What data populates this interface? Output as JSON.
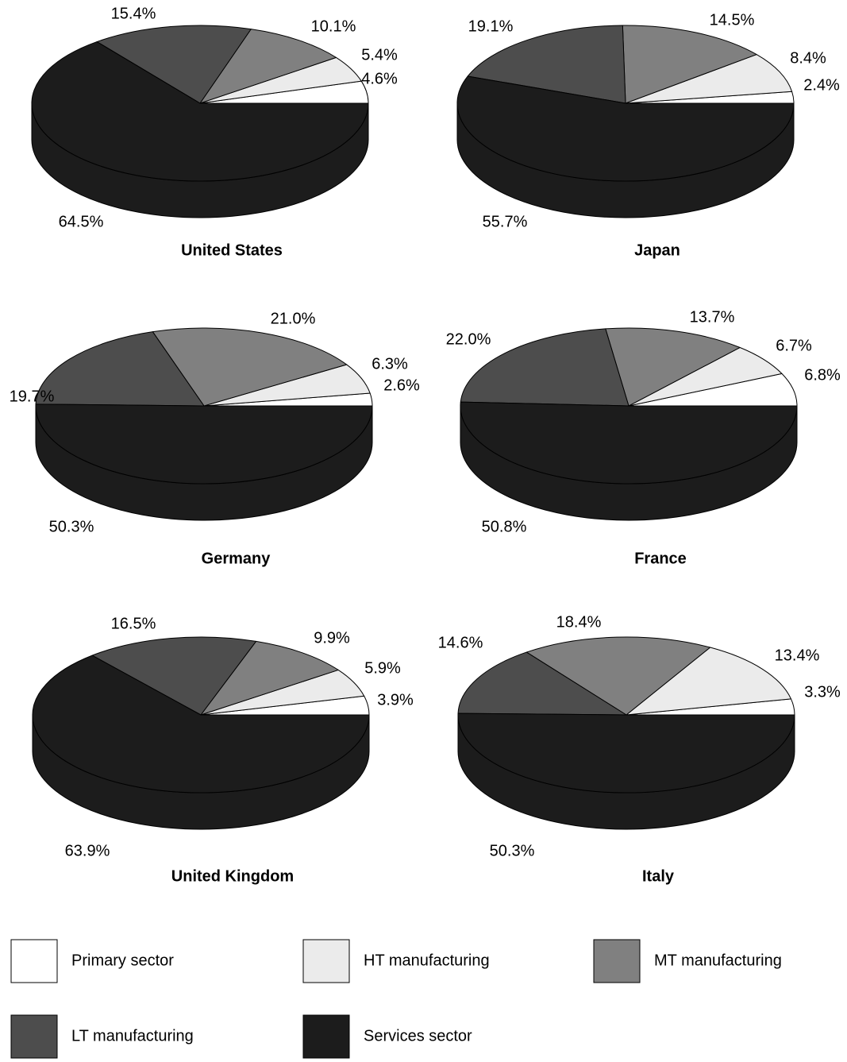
{
  "chart_data": [
    {
      "type": "pie",
      "title": "United States",
      "categories": [
        "Primary sector",
        "HT manufacturing",
        "MT manufacturing",
        "LT manufacturing",
        "Services sector"
      ],
      "values": [
        4.6,
        5.4,
        10.1,
        15.4,
        64.5
      ],
      "labels": [
        "4.6%",
        "5.4%",
        "10.1%",
        "15.4%",
        "64.5%"
      ]
    },
    {
      "type": "pie",
      "title": "Japan",
      "categories": [
        "Primary sector",
        "HT manufacturing",
        "MT manufacturing",
        "LT manufacturing",
        "Services sector"
      ],
      "values": [
        2.4,
        8.4,
        14.5,
        19.1,
        55.7
      ],
      "labels": [
        "2.4%",
        "8.4%",
        "14.5%",
        "19.1%",
        "55.7%"
      ]
    },
    {
      "type": "pie",
      "title": "Germany",
      "categories": [
        "Primary sector",
        "HT manufacturing",
        "MT manufacturing",
        "LT manufacturing",
        "Services sector"
      ],
      "values": [
        2.6,
        6.3,
        21.0,
        19.7,
        50.3
      ],
      "labels": [
        "2.6%",
        "6.3%",
        "21.0%",
        "19.7%",
        "50.3%"
      ]
    },
    {
      "type": "pie",
      "title": "France",
      "categories": [
        "Primary sector",
        "HT manufacturing",
        "MT manufacturing",
        "LT manufacturing",
        "Services sector"
      ],
      "values": [
        6.8,
        6.7,
        13.7,
        22.0,
        50.8
      ],
      "labels": [
        "6.8%",
        "6.7%",
        "13.7%",
        "22.0%",
        "50.8%"
      ]
    },
    {
      "type": "pie",
      "title": "United Kingdom",
      "categories": [
        "Primary sector",
        "HT manufacturing",
        "MT manufacturing",
        "LT manufacturing",
        "Services sector"
      ],
      "values": [
        3.9,
        5.9,
        9.9,
        16.5,
        63.9
      ],
      "labels": [
        "3.9%",
        "5.9%",
        "9.9%",
        "16.5%",
        "63.9%"
      ]
    },
    {
      "type": "pie",
      "title": "Italy",
      "categories": [
        "Primary sector",
        "HT manufacturing",
        "MT manufacturing",
        "LT manufacturing",
        "Services sector"
      ],
      "values": [
        3.3,
        13.4,
        18.4,
        14.6,
        50.3
      ],
      "labels": [
        "3.3%",
        "13.4%",
        "18.4%",
        "14.6%",
        "50.3%"
      ]
    }
  ],
  "legend": [
    {
      "label": "Primary sector",
      "color": "#ffffff"
    },
    {
      "label": "HT manufacturing",
      "color": "#ebebeb"
    },
    {
      "label": "MT manufacturing",
      "color": "#808080"
    },
    {
      "label": "LT manufacturing",
      "color": "#4d4d4d"
    },
    {
      "label": "Services sector",
      "color": "#1c1c1c"
    }
  ],
  "colors": {
    "side": "#1c1c1c",
    "stroke": "#000000"
  }
}
